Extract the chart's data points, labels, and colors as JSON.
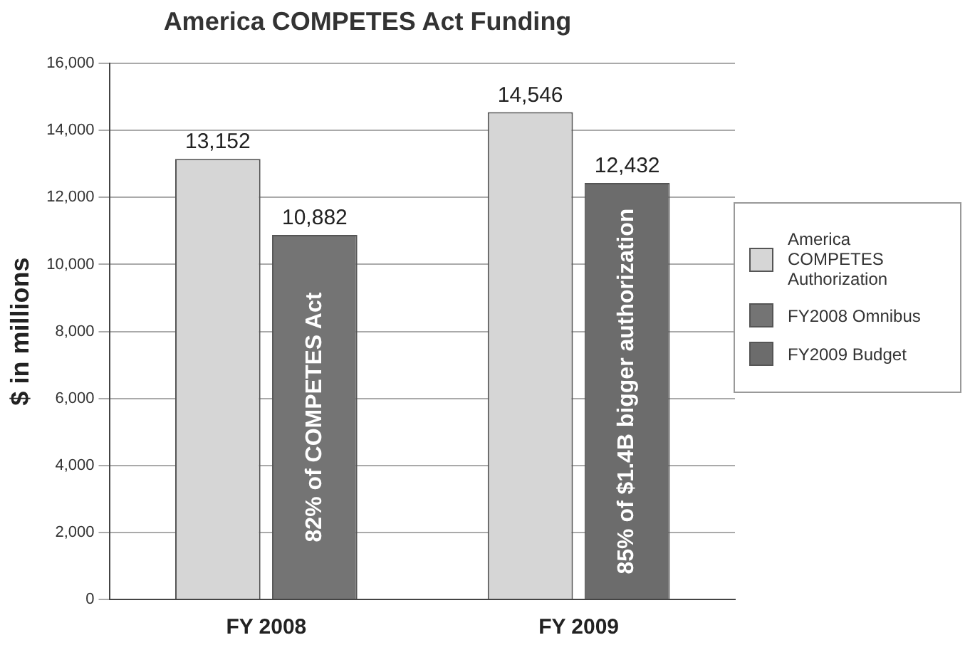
{
  "chart_data": {
    "type": "bar",
    "title": "America COMPETES Act Funding",
    "ylabel": "$ in millions",
    "categories": [
      "FY 2008",
      "FY 2009"
    ],
    "series": [
      {
        "name": "America COMPETES Authorization",
        "color": "#d6d6d6",
        "values": [
          13152,
          14546
        ],
        "value_labels": [
          "13,152",
          "14,546"
        ]
      },
      {
        "name": "FY2008 Omnibus",
        "color": "#747474",
        "values": [
          10882,
          null
        ],
        "value_labels": [
          "10,882",
          null
        ]
      },
      {
        "name": "FY2009 Budget",
        "color": "#6c6c6c",
        "values": [
          null,
          12432
        ],
        "value_labels": [
          null,
          "12,432"
        ]
      }
    ],
    "ylim": [
      0,
      16000
    ],
    "yticks": [
      {
        "value": 0,
        "label": "0"
      },
      {
        "value": 2000,
        "label": "2,000"
      },
      {
        "value": 4000,
        "label": "4,000"
      },
      {
        "value": 6000,
        "label": "6,000"
      },
      {
        "value": 8000,
        "label": "8,000"
      },
      {
        "value": 10000,
        "label": "10,000"
      },
      {
        "value": 12000,
        "label": "12,000"
      },
      {
        "value": 14000,
        "label": "14,000"
      },
      {
        "value": 16000,
        "label": "16,000"
      }
    ],
    "grid": "y",
    "legend": "right",
    "annotations": [
      "82% of COMPETES Act",
      "85% of $1.4B bigger authorization"
    ]
  }
}
